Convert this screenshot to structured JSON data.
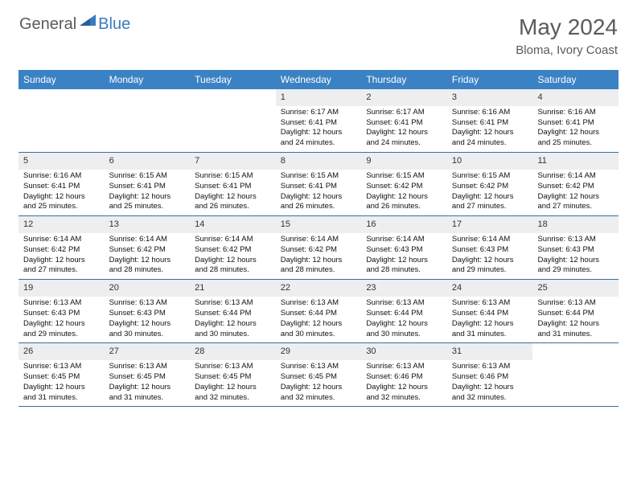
{
  "logo": {
    "general": "General",
    "blue": "Blue"
  },
  "title": "May 2024",
  "location": "Bloma, Ivory Coast",
  "dayNames": [
    "Sunday",
    "Monday",
    "Tuesday",
    "Wednesday",
    "Thursday",
    "Friday",
    "Saturday"
  ],
  "colors": {
    "headerBg": "#3b82c4",
    "headerText": "#ffffff",
    "dayNumBg": "#eceef0",
    "borderColor": "#3b6ea0",
    "logoBlue": "#3b7bbf",
    "logoGray": "#5a5a5a"
  },
  "weeks": [
    [
      {
        "num": "",
        "sunrise": "",
        "sunset": "",
        "daylight": ""
      },
      {
        "num": "",
        "sunrise": "",
        "sunset": "",
        "daylight": ""
      },
      {
        "num": "",
        "sunrise": "",
        "sunset": "",
        "daylight": ""
      },
      {
        "num": "1",
        "sunrise": "Sunrise: 6:17 AM",
        "sunset": "Sunset: 6:41 PM",
        "daylight": "Daylight: 12 hours and 24 minutes."
      },
      {
        "num": "2",
        "sunrise": "Sunrise: 6:17 AM",
        "sunset": "Sunset: 6:41 PM",
        "daylight": "Daylight: 12 hours and 24 minutes."
      },
      {
        "num": "3",
        "sunrise": "Sunrise: 6:16 AM",
        "sunset": "Sunset: 6:41 PM",
        "daylight": "Daylight: 12 hours and 24 minutes."
      },
      {
        "num": "4",
        "sunrise": "Sunrise: 6:16 AM",
        "sunset": "Sunset: 6:41 PM",
        "daylight": "Daylight: 12 hours and 25 minutes."
      }
    ],
    [
      {
        "num": "5",
        "sunrise": "Sunrise: 6:16 AM",
        "sunset": "Sunset: 6:41 PM",
        "daylight": "Daylight: 12 hours and 25 minutes."
      },
      {
        "num": "6",
        "sunrise": "Sunrise: 6:15 AM",
        "sunset": "Sunset: 6:41 PM",
        "daylight": "Daylight: 12 hours and 25 minutes."
      },
      {
        "num": "7",
        "sunrise": "Sunrise: 6:15 AM",
        "sunset": "Sunset: 6:41 PM",
        "daylight": "Daylight: 12 hours and 26 minutes."
      },
      {
        "num": "8",
        "sunrise": "Sunrise: 6:15 AM",
        "sunset": "Sunset: 6:41 PM",
        "daylight": "Daylight: 12 hours and 26 minutes."
      },
      {
        "num": "9",
        "sunrise": "Sunrise: 6:15 AM",
        "sunset": "Sunset: 6:42 PM",
        "daylight": "Daylight: 12 hours and 26 minutes."
      },
      {
        "num": "10",
        "sunrise": "Sunrise: 6:15 AM",
        "sunset": "Sunset: 6:42 PM",
        "daylight": "Daylight: 12 hours and 27 minutes."
      },
      {
        "num": "11",
        "sunrise": "Sunrise: 6:14 AM",
        "sunset": "Sunset: 6:42 PM",
        "daylight": "Daylight: 12 hours and 27 minutes."
      }
    ],
    [
      {
        "num": "12",
        "sunrise": "Sunrise: 6:14 AM",
        "sunset": "Sunset: 6:42 PM",
        "daylight": "Daylight: 12 hours and 27 minutes."
      },
      {
        "num": "13",
        "sunrise": "Sunrise: 6:14 AM",
        "sunset": "Sunset: 6:42 PM",
        "daylight": "Daylight: 12 hours and 28 minutes."
      },
      {
        "num": "14",
        "sunrise": "Sunrise: 6:14 AM",
        "sunset": "Sunset: 6:42 PM",
        "daylight": "Daylight: 12 hours and 28 minutes."
      },
      {
        "num": "15",
        "sunrise": "Sunrise: 6:14 AM",
        "sunset": "Sunset: 6:42 PM",
        "daylight": "Daylight: 12 hours and 28 minutes."
      },
      {
        "num": "16",
        "sunrise": "Sunrise: 6:14 AM",
        "sunset": "Sunset: 6:43 PM",
        "daylight": "Daylight: 12 hours and 28 minutes."
      },
      {
        "num": "17",
        "sunrise": "Sunrise: 6:14 AM",
        "sunset": "Sunset: 6:43 PM",
        "daylight": "Daylight: 12 hours and 29 minutes."
      },
      {
        "num": "18",
        "sunrise": "Sunrise: 6:13 AM",
        "sunset": "Sunset: 6:43 PM",
        "daylight": "Daylight: 12 hours and 29 minutes."
      }
    ],
    [
      {
        "num": "19",
        "sunrise": "Sunrise: 6:13 AM",
        "sunset": "Sunset: 6:43 PM",
        "daylight": "Daylight: 12 hours and 29 minutes."
      },
      {
        "num": "20",
        "sunrise": "Sunrise: 6:13 AM",
        "sunset": "Sunset: 6:43 PM",
        "daylight": "Daylight: 12 hours and 30 minutes."
      },
      {
        "num": "21",
        "sunrise": "Sunrise: 6:13 AM",
        "sunset": "Sunset: 6:44 PM",
        "daylight": "Daylight: 12 hours and 30 minutes."
      },
      {
        "num": "22",
        "sunrise": "Sunrise: 6:13 AM",
        "sunset": "Sunset: 6:44 PM",
        "daylight": "Daylight: 12 hours and 30 minutes."
      },
      {
        "num": "23",
        "sunrise": "Sunrise: 6:13 AM",
        "sunset": "Sunset: 6:44 PM",
        "daylight": "Daylight: 12 hours and 30 minutes."
      },
      {
        "num": "24",
        "sunrise": "Sunrise: 6:13 AM",
        "sunset": "Sunset: 6:44 PM",
        "daylight": "Daylight: 12 hours and 31 minutes."
      },
      {
        "num": "25",
        "sunrise": "Sunrise: 6:13 AM",
        "sunset": "Sunset: 6:44 PM",
        "daylight": "Daylight: 12 hours and 31 minutes."
      }
    ],
    [
      {
        "num": "26",
        "sunrise": "Sunrise: 6:13 AM",
        "sunset": "Sunset: 6:45 PM",
        "daylight": "Daylight: 12 hours and 31 minutes."
      },
      {
        "num": "27",
        "sunrise": "Sunrise: 6:13 AM",
        "sunset": "Sunset: 6:45 PM",
        "daylight": "Daylight: 12 hours and 31 minutes."
      },
      {
        "num": "28",
        "sunrise": "Sunrise: 6:13 AM",
        "sunset": "Sunset: 6:45 PM",
        "daylight": "Daylight: 12 hours and 32 minutes."
      },
      {
        "num": "29",
        "sunrise": "Sunrise: 6:13 AM",
        "sunset": "Sunset: 6:45 PM",
        "daylight": "Daylight: 12 hours and 32 minutes."
      },
      {
        "num": "30",
        "sunrise": "Sunrise: 6:13 AM",
        "sunset": "Sunset: 6:46 PM",
        "daylight": "Daylight: 12 hours and 32 minutes."
      },
      {
        "num": "31",
        "sunrise": "Sunrise: 6:13 AM",
        "sunset": "Sunset: 6:46 PM",
        "daylight": "Daylight: 12 hours and 32 minutes."
      },
      {
        "num": "",
        "sunrise": "",
        "sunset": "",
        "daylight": ""
      }
    ]
  ]
}
